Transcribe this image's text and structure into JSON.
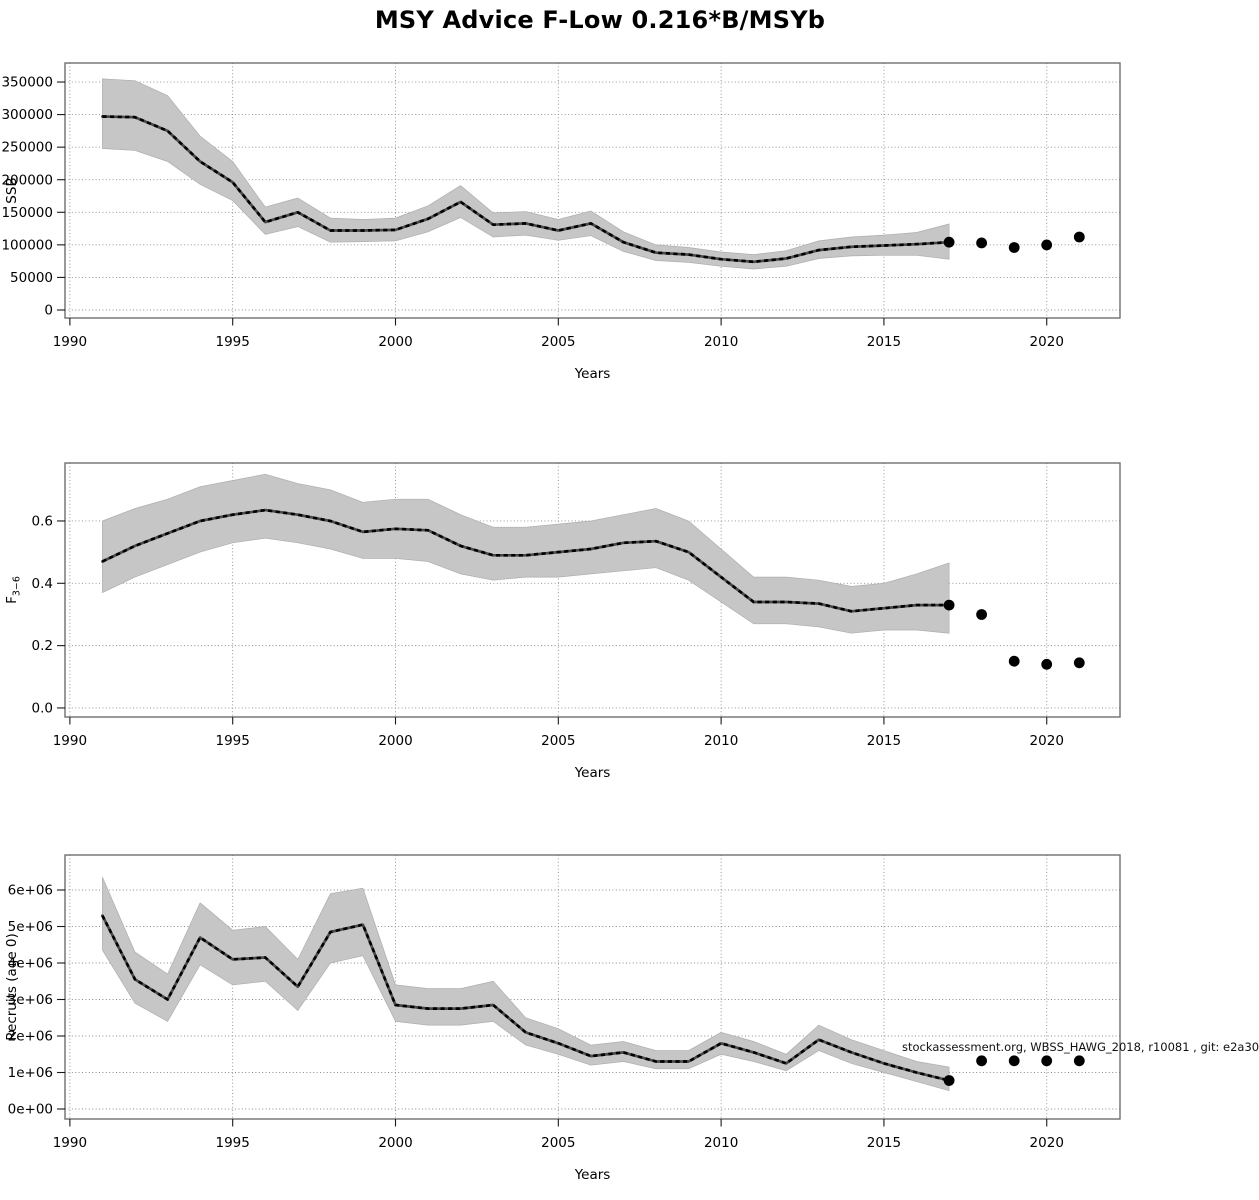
{
  "page_title": "MSY Advice F-Low 0.216*B/MSYb",
  "watermark": "stockassessment.org, WBSS_HAWG_2018, r10081 , git: e2a30",
  "colors": {
    "band": "#c6c6c6",
    "median_line": "#000000",
    "median_underlay": "#4a4a4a",
    "forecast_dot": "#000000",
    "gridline": "#8a8a8a",
    "plot_border": "#6e6e6e",
    "background": "#ffffff"
  },
  "chart_data": [
    {
      "type": "line",
      "name": "ssb",
      "ylabel": "SSB",
      "ylabel_sub": "",
      "xlabel": "Years",
      "grid": true,
      "legend": "none",
      "xlim": [
        1989.85,
        2022.25
      ],
      "ylim": [
        -12300,
        379200
      ],
      "x_ticks": [
        1990,
        1995,
        2000,
        2005,
        2010,
        2015,
        2020
      ],
      "y_ticks": [
        {
          "v": 0,
          "label": "0"
        },
        {
          "v": 50000,
          "label": "50000"
        },
        {
          "v": 100000,
          "label": "100000"
        },
        {
          "v": 150000,
          "label": "150000"
        },
        {
          "v": 200000,
          "label": "200000"
        },
        {
          "v": 250000,
          "label": "250000"
        },
        {
          "v": 300000,
          "label": "300000"
        },
        {
          "v": 350000,
          "label": "350000"
        }
      ],
      "years": [
        1991,
        1992,
        1993,
        1994,
        1995,
        1996,
        1997,
        1998,
        1999,
        2000,
        2001,
        2002,
        2003,
        2004,
        2005,
        2006,
        2007,
        2008,
        2009,
        2010,
        2011,
        2012,
        2013,
        2014,
        2015,
        2016,
        2017
      ],
      "median": [
        297000,
        296000,
        275000,
        228000,
        196000,
        135000,
        150000,
        122000,
        122000,
        123000,
        140000,
        166000,
        131000,
        133000,
        122000,
        133000,
        104000,
        88000,
        85000,
        78000,
        74000,
        79000,
        92000,
        97000,
        99000,
        101000,
        104000
      ],
      "lo": [
        248000,
        245000,
        228000,
        193000,
        168000,
        116000,
        128000,
        104000,
        105000,
        106000,
        120000,
        142000,
        112000,
        115000,
        107000,
        114000,
        90000,
        76000,
        73000,
        67000,
        63000,
        67000,
        79000,
        83000,
        84000,
        84000,
        78000
      ],
      "hi": [
        355000,
        352000,
        329000,
        267000,
        228000,
        158000,
        172000,
        141000,
        139000,
        141000,
        160000,
        191000,
        149000,
        151000,
        139000,
        152000,
        120000,
        100000,
        96000,
        89000,
        85000,
        91000,
        106000,
        112000,
        115000,
        119000,
        132000
      ],
      "forecast_dots": {
        "years": [
          2017,
          2018,
          2019,
          2020,
          2021
        ],
        "values": [
          104000,
          103000,
          96000,
          100000,
          112000
        ]
      }
    },
    {
      "type": "line",
      "name": "f",
      "ylabel": "F",
      "ylabel_sub": "3−6",
      "xlabel": "Years",
      "grid": true,
      "legend": "none",
      "xlim": [
        1989.85,
        2022.25
      ],
      "ylim": [
        -0.029,
        0.786
      ],
      "x_ticks": [
        1990,
        1995,
        2000,
        2005,
        2010,
        2015,
        2020
      ],
      "y_ticks": [
        {
          "v": 0.0,
          "label": "0.0"
        },
        {
          "v": 0.2,
          "label": "0.2"
        },
        {
          "v": 0.4,
          "label": "0.4"
        },
        {
          "v": 0.6,
          "label": "0.6"
        }
      ],
      "years": [
        1991,
        1992,
        1993,
        1994,
        1995,
        1996,
        1997,
        1998,
        1999,
        2000,
        2001,
        2002,
        2003,
        2004,
        2005,
        2006,
        2007,
        2008,
        2009,
        2010,
        2011,
        2012,
        2013,
        2014,
        2015,
        2016,
        2017
      ],
      "median": [
        0.47,
        0.52,
        0.56,
        0.6,
        0.62,
        0.635,
        0.62,
        0.6,
        0.565,
        0.575,
        0.57,
        0.52,
        0.49,
        0.49,
        0.5,
        0.51,
        0.53,
        0.535,
        0.5,
        0.42,
        0.34,
        0.34,
        0.335,
        0.31,
        0.32,
        0.33,
        0.33
      ],
      "lo": [
        0.37,
        0.42,
        0.46,
        0.5,
        0.53,
        0.545,
        0.53,
        0.51,
        0.48,
        0.48,
        0.47,
        0.43,
        0.41,
        0.42,
        0.42,
        0.43,
        0.44,
        0.45,
        0.41,
        0.34,
        0.27,
        0.27,
        0.26,
        0.24,
        0.25,
        0.25,
        0.24
      ],
      "hi": [
        0.6,
        0.64,
        0.67,
        0.71,
        0.73,
        0.75,
        0.72,
        0.7,
        0.66,
        0.67,
        0.67,
        0.62,
        0.58,
        0.58,
        0.59,
        0.6,
        0.62,
        0.64,
        0.6,
        0.51,
        0.42,
        0.42,
        0.41,
        0.39,
        0.4,
        0.43,
        0.465
      ],
      "forecast_dots": {
        "years": [
          2017,
          2018,
          2019,
          2020,
          2021
        ],
        "values": [
          0.33,
          0.3,
          0.15,
          0.14,
          0.145
        ]
      }
    },
    {
      "type": "line",
      "name": "recruits",
      "ylabel": "Recruits (age 0)",
      "ylabel_sub": "",
      "xlabel": "Years",
      "grid": true,
      "legend": "none",
      "xlim": [
        1989.85,
        2022.25
      ],
      "ylim": [
        -274000,
        6959000
      ],
      "x_ticks": [
        1990,
        1995,
        2000,
        2005,
        2010,
        2015,
        2020
      ],
      "y_ticks": [
        {
          "v": 0,
          "label": "0e+00"
        },
        {
          "v": 1000000,
          "label": "1e+06"
        },
        {
          "v": 2000000,
          "label": "2e+06"
        },
        {
          "v": 3000000,
          "label": "3e+06"
        },
        {
          "v": 4000000,
          "label": "4e+06"
        },
        {
          "v": 5000000,
          "label": "5e+06"
        },
        {
          "v": 6000000,
          "label": "6e+06"
        }
      ],
      "years": [
        1991,
        1992,
        1993,
        1994,
        1995,
        1996,
        1997,
        1998,
        1999,
        2000,
        2001,
        2002,
        2003,
        2004,
        2005,
        2006,
        2007,
        2008,
        2009,
        2010,
        2011,
        2012,
        2013,
        2014,
        2015,
        2016,
        2017
      ],
      "median": [
        5300000,
        3550000,
        3000000,
        4700000,
        4100000,
        4150000,
        3350000,
        4850000,
        5050000,
        2850000,
        2750000,
        2750000,
        2850000,
        2100000,
        1800000,
        1450000,
        1550000,
        1300000,
        1300000,
        1800000,
        1550000,
        1250000,
        1900000,
        1550000,
        1250000,
        1000000,
        780000
      ],
      "lo": [
        4350000,
        2900000,
        2400000,
        3950000,
        3400000,
        3500000,
        2700000,
        4000000,
        4200000,
        2400000,
        2300000,
        2300000,
        2400000,
        1750000,
        1500000,
        1200000,
        1300000,
        1100000,
        1100000,
        1500000,
        1300000,
        1050000,
        1600000,
        1250000,
        1000000,
        750000,
        500000
      ],
      "hi": [
        6350000,
        4300000,
        3700000,
        5650000,
        4900000,
        5000000,
        4100000,
        5900000,
        6050000,
        3400000,
        3300000,
        3300000,
        3500000,
        2500000,
        2200000,
        1750000,
        1850000,
        1600000,
        1600000,
        2100000,
        1850000,
        1500000,
        2300000,
        1900000,
        1600000,
        1300000,
        1150000
      ],
      "forecast_dots": {
        "years": [
          2017,
          2018,
          2019,
          2020,
          2021
        ],
        "values": [
          780000,
          1320000,
          1320000,
          1320000,
          1320000
        ]
      }
    }
  ]
}
